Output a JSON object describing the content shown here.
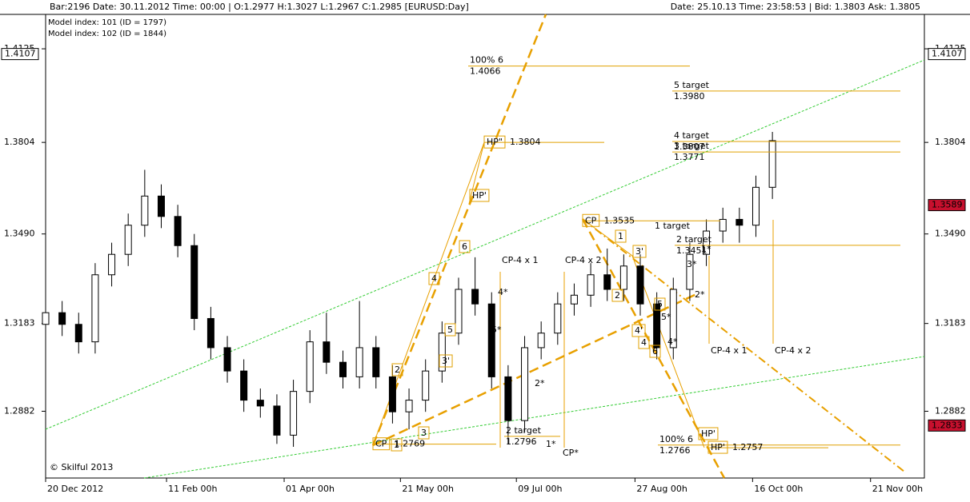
{
  "header": {
    "left": "Bar:2196  Date:  30.11.2012  Time:  00:00  |  O:1.2977  H:1.3027  L:1.2967  C:1.2985   [EURUSD:Day]",
    "right": "Date:  25.10.13  Time:  23:58:53  |  Bid:  1.3803  Ask:  1.3805",
    "models": [
      "Model index: 101  (ID = 1797)",
      "Model index: 102  (ID = 1844)"
    ],
    "copyright": "© Skilful 2013"
  },
  "chart_data": {
    "type": "candlestick",
    "x": [
      0,
      5,
      10,
      15,
      20,
      25,
      30,
      35,
      40,
      45,
      50,
      55,
      60,
      65,
      70,
      75,
      80,
      85,
      90,
      95,
      100,
      105,
      110,
      115,
      120,
      125,
      130,
      135,
      140,
      145,
      150,
      155,
      160,
      165,
      170,
      175,
      180,
      185,
      190,
      195,
      200,
      205,
      210,
      215,
      220
    ],
    "open": [
      1.318,
      1.322,
      1.318,
      1.312,
      1.335,
      1.342,
      1.352,
      1.362,
      1.355,
      1.345,
      1.32,
      1.31,
      1.302,
      1.292,
      1.29,
      1.28,
      1.295,
      1.312,
      1.305,
      1.3,
      1.31,
      1.3,
      1.288,
      1.292,
      1.302,
      1.315,
      1.33,
      1.325,
      1.3,
      1.285,
      1.31,
      1.315,
      1.325,
      1.328,
      1.335,
      1.33,
      1.338,
      1.325,
      1.31,
      1.33,
      1.342,
      1.35,
      1.354,
      1.352,
      1.365
    ],
    "high": [
      1.326,
      1.326,
      1.322,
      1.339,
      1.346,
      1.356,
      1.371,
      1.366,
      1.359,
      1.349,
      1.324,
      1.314,
      1.306,
      1.296,
      1.294,
      1.299,
      1.316,
      1.322,
      1.309,
      1.326,
      1.314,
      1.304,
      1.296,
      1.306,
      1.319,
      1.334,
      1.341,
      1.329,
      1.304,
      1.314,
      1.319,
      1.329,
      1.332,
      1.339,
      1.344,
      1.342,
      1.342,
      1.329,
      1.334,
      1.346,
      1.354,
      1.358,
      1.358,
      1.369,
      1.384
    ],
    "low": [
      1.314,
      1.314,
      1.308,
      1.308,
      1.331,
      1.338,
      1.348,
      1.351,
      1.341,
      1.316,
      1.306,
      1.298,
      1.288,
      1.286,
      1.277,
      1.276,
      1.291,
      1.301,
      1.296,
      1.296,
      1.296,
      1.284,
      1.282,
      1.288,
      1.298,
      1.311,
      1.321,
      1.296,
      1.277,
      1.281,
      1.306,
      1.311,
      1.321,
      1.324,
      1.326,
      1.326,
      1.321,
      1.306,
      1.306,
      1.326,
      1.338,
      1.346,
      1.346,
      1.348,
      1.361
    ],
    "close": [
      1.322,
      1.318,
      1.312,
      1.335,
      1.342,
      1.352,
      1.362,
      1.355,
      1.345,
      1.32,
      1.31,
      1.302,
      1.292,
      1.29,
      1.28,
      1.295,
      1.312,
      1.305,
      1.3,
      1.31,
      1.3,
      1.288,
      1.292,
      1.302,
      1.315,
      1.33,
      1.325,
      1.3,
      1.285,
      1.31,
      1.315,
      1.325,
      1.328,
      1.335,
      1.33,
      1.338,
      1.325,
      1.31,
      1.33,
      1.342,
      1.35,
      1.354,
      1.352,
      1.365,
      1.381
    ],
    "xlim": [
      0,
      266
    ],
    "xticks": [
      {
        "value": 0,
        "label": "20 Dec 2012"
      },
      {
        "value": 36.6,
        "label": "11 Feb 00h"
      },
      {
        "value": 72.2,
        "label": "01 Apr 00h"
      },
      {
        "value": 107.4,
        "label": "21 May 00h"
      },
      {
        "value": 142.5,
        "label": "09 Jul 00h"
      },
      {
        "value": 178.4,
        "label": "27 Aug 00h"
      },
      {
        "value": 214,
        "label": "16 Oct 00h"
      },
      {
        "value": 249.7,
        "label": "21 Nov 00h"
      }
    ],
    "ylim": [
      1.2653,
      1.4243
    ],
    "yticks": [
      1.2882,
      1.3183,
      {
        "value": 1.349,
        "label": "1.3490"
      },
      1.3804,
      1.4125
    ],
    "price_markers": [
      {
        "value": 1.4107,
        "color": "#000000"
      },
      {
        "value": 1.3589,
        "color": "#c8102e"
      },
      {
        "value": 1.2833,
        "color": "#c8102e"
      }
    ],
    "levels": [
      {
        "label": "100% 6",
        "value": 1.4066
      },
      {
        "label": "5 target",
        "value": 1.398,
        "value_label": "1.3980"
      },
      {
        "label": "4 target",
        "value": 1.3807
      },
      {
        "label": "3 target",
        "value": 1.3771
      },
      {
        "label": "HP\"",
        "value": 1.3804
      },
      {
        "label": "CP",
        "value": 1.3535
      },
      {
        "label": "2 target",
        "value": 1.3451
      },
      {
        "label": "100% 6",
        "value": 1.2766
      },
      {
        "label": "HP'",
        "value": 1.2757
      },
      {
        "label": "CP",
        "value": 1.2769
      },
      {
        "label": "2 target",
        "value": 1.2796
      }
    ],
    "point_labels": [
      "1",
      "2",
      "3",
      "3'",
      "4",
      "5",
      "6",
      "HP'",
      "1",
      "2",
      "3'",
      "4'",
      "4",
      "5",
      "6",
      "HP'",
      "1*",
      "2*",
      "3*",
      "4*",
      "5*",
      "1*",
      "2*",
      "4*",
      "5*",
      "CP-4 x 1",
      "CP-4 x 2",
      "CP-4 x 1",
      "CP-4 x 2",
      "CP*",
      "1 target"
    ],
    "level_color": "#e0a000",
    "up_color": "#ffffff",
    "down_color": "#000000"
  }
}
